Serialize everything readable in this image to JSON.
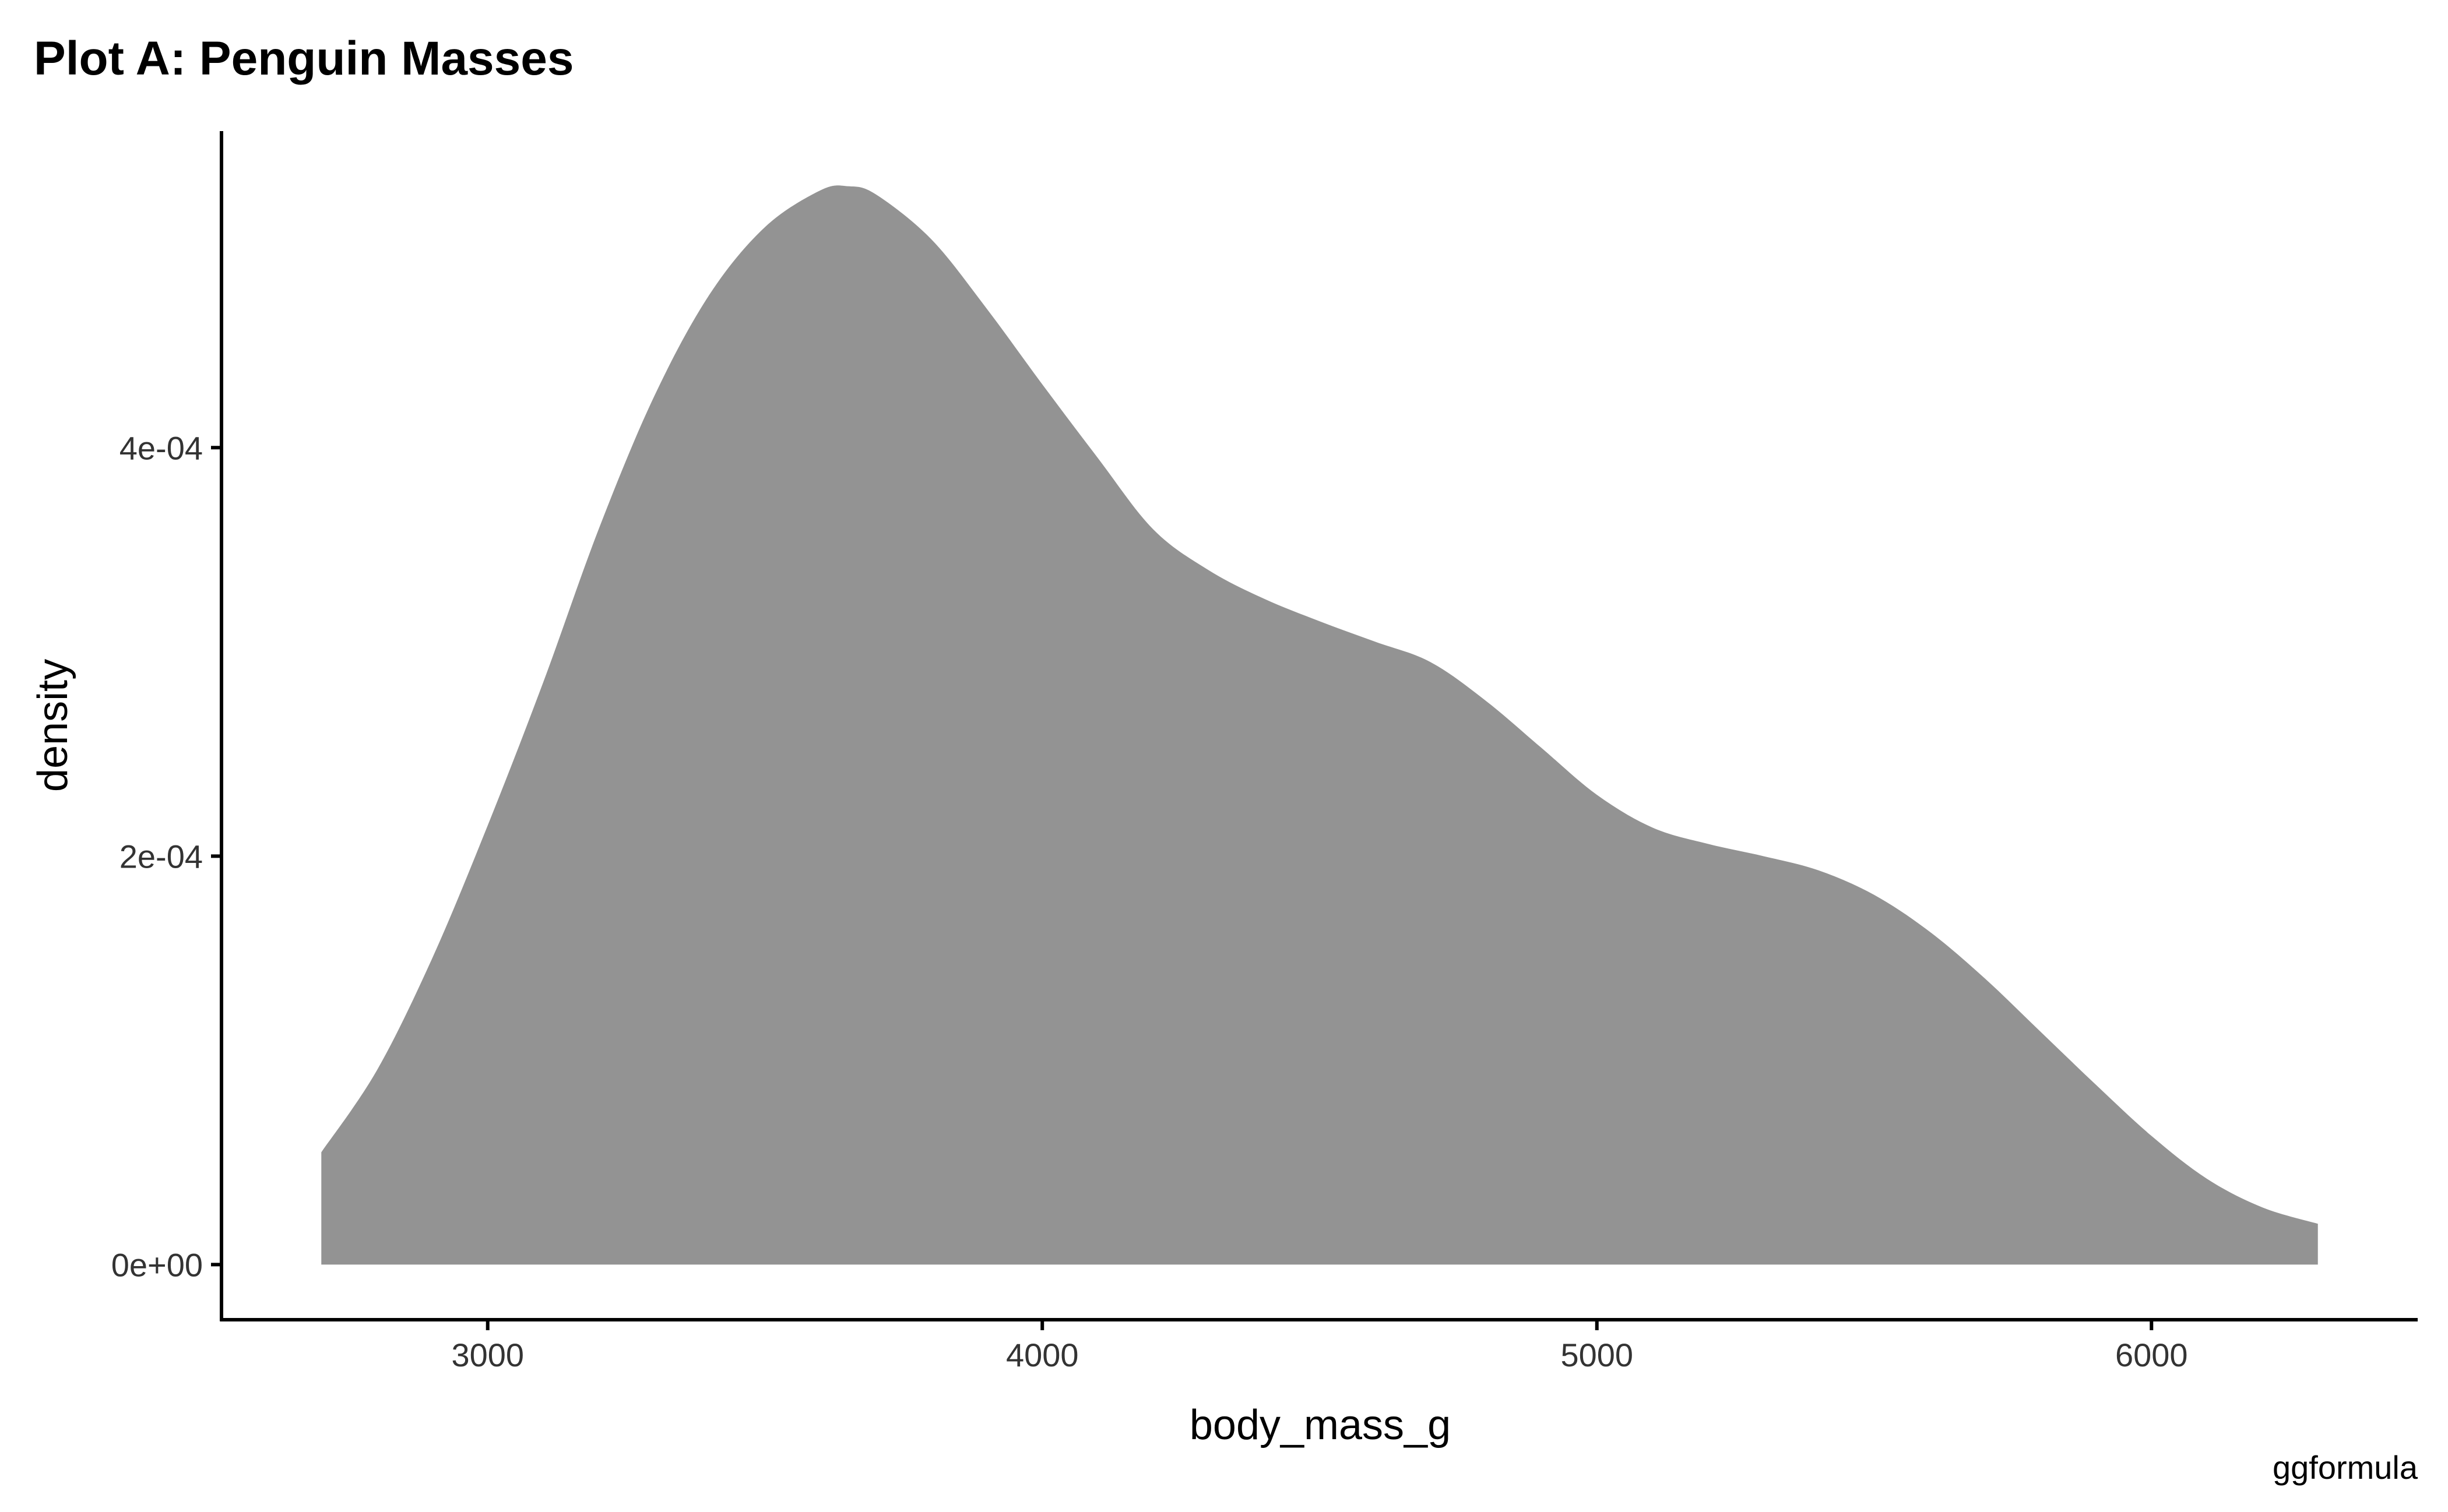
{
  "chart_data": {
    "type": "area",
    "title": "Plot A: Penguin Masses",
    "xlabel": "body_mass_g",
    "ylabel": "density",
    "caption": "ggformula",
    "xlim": [
      2520,
      6480
    ],
    "ylim": [
      -2.7e-05,
      0.000555
    ],
    "grid": false,
    "legend": "none",
    "fill_color": "#939393",
    "axis_color": "#000000",
    "x_ticks": [
      {
        "value": 3000,
        "label": "3000"
      },
      {
        "value": 4000,
        "label": "4000"
      },
      {
        "value": 5000,
        "label": "5000"
      },
      {
        "value": 6000,
        "label": "6000"
      }
    ],
    "y_ticks": [
      {
        "value": 0,
        "label": "0e+00"
      },
      {
        "value": 0.0002,
        "label": "2e-04"
      },
      {
        "value": 0.0004,
        "label": "4e-04"
      }
    ],
    "series": [
      {
        "name": "density",
        "x": [
          2700,
          2800,
          2900,
          3000,
          3100,
          3200,
          3300,
          3400,
          3500,
          3600,
          3650,
          3700,
          3800,
          3900,
          4000,
          4100,
          4200,
          4300,
          4400,
          4500,
          4600,
          4700,
          4800,
          4900,
          5000,
          5100,
          5200,
          5300,
          5400,
          5500,
          5600,
          5700,
          5800,
          5900,
          6000,
          6100,
          6200,
          6300
        ],
        "y": [
          5.5e-05,
          9.5e-05,
          0.00015,
          0.000215,
          0.000285,
          0.00036,
          0.000425,
          0.000475,
          0.000508,
          0.000526,
          0.000528,
          0.000524,
          0.000502,
          0.000468,
          0.000431,
          0.000395,
          0.00036,
          0.00034,
          0.000326,
          0.000315,
          0.000305,
          0.000295,
          0.000276,
          0.000253,
          0.00023,
          0.000214,
          0.000206,
          0.0002,
          0.000193,
          0.000181,
          0.000163,
          0.00014,
          0.000114,
          8.8e-05,
          6.3e-05,
          4.2e-05,
          2.8e-05,
          2e-05
        ]
      }
    ]
  }
}
